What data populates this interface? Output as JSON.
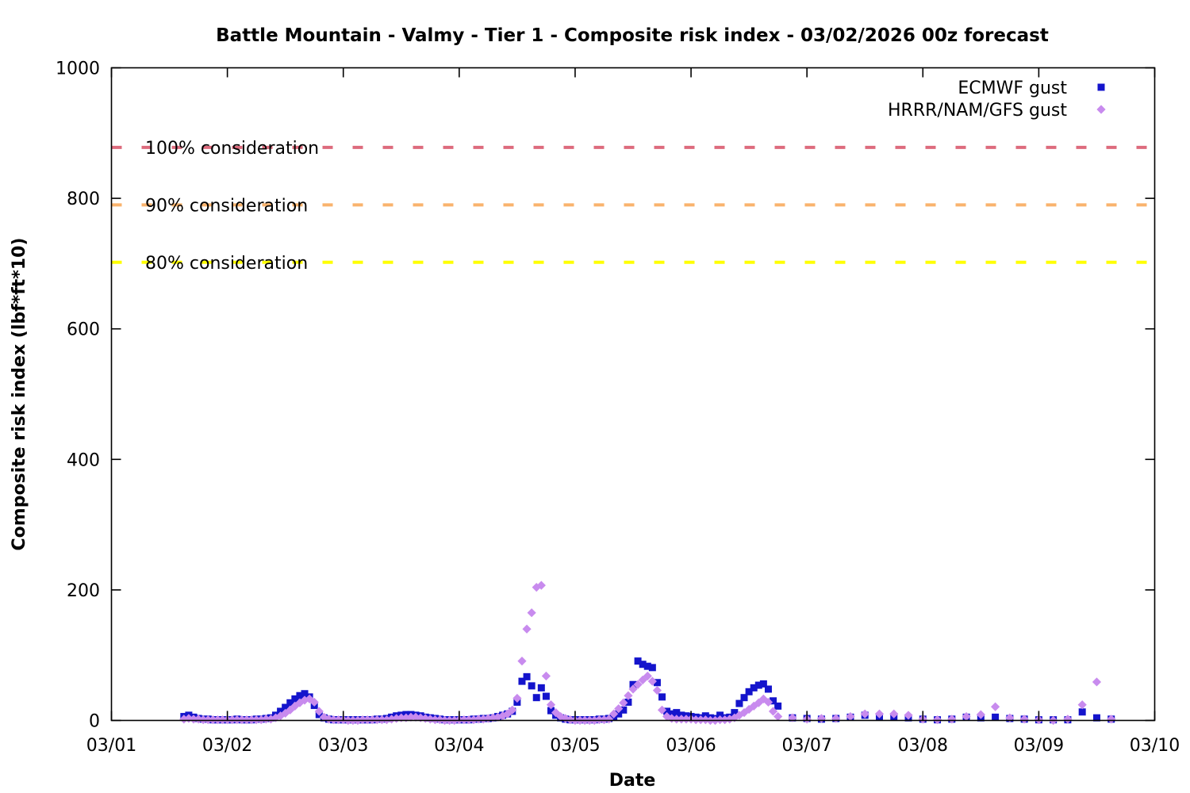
{
  "chart_data": {
    "type": "scatter",
    "title": "Battle Mountain - Valmy - Tier 1 - Composite risk index - 03/02/2026 00z forecast",
    "x": {
      "title": "Date",
      "tick_labels": [
        "03/01",
        "03/02",
        "03/03",
        "03/04",
        "03/05",
        "03/06",
        "03/07",
        "03/08",
        "03/09",
        "03/10"
      ],
      "range_days": [
        0,
        9
      ]
    },
    "y": {
      "title": "Composite risk index (lbf*ft*10)",
      "tick_values": [
        0,
        200,
        400,
        600,
        800,
        1000
      ],
      "tick_labels": [
        "0",
        "200",
        "400",
        "600",
        "800",
        "1000"
      ],
      "range": [
        0,
        1000
      ]
    },
    "grid": false,
    "legend_position": "top-right-inside",
    "thresholds": [
      {
        "label": "100% consideration",
        "value": 878,
        "color": "#dd6b7d"
      },
      {
        "label": "90% consideration",
        "value": 790,
        "color": "#f9b36d"
      },
      {
        "label": "80% consideration",
        "value": 702,
        "color": "#ffff00"
      }
    ],
    "series": [
      {
        "name": "ECMWF gust",
        "marker": "square",
        "color": "#1414cc",
        "segments": [
          {
            "start_day": 0.625,
            "step_hours": 1,
            "values": [
              6,
              8,
              5,
              3,
              2,
              2,
              1,
              1,
              1,
              1,
              1,
              2,
              1,
              1,
              1,
              2,
              2,
              3,
              4,
              8,
              14,
              20,
              27,
              33,
              38,
              41,
              36,
              23,
              9,
              4,
              2,
              1,
              1,
              1,
              1,
              1,
              1,
              1,
              1,
              1,
              2,
              2,
              3,
              5,
              7,
              8,
              9,
              9,
              8,
              7,
              5,
              4,
              3,
              2,
              1,
              1,
              1,
              1,
              1,
              1,
              2,
              2,
              3,
              3,
              4,
              6,
              8,
              10,
              14,
              28,
              60,
              67,
              53,
              35,
              50,
              37,
              15,
              8,
              4,
              2,
              1,
              1,
              1,
              1,
              1,
              1,
              2,
              2,
              3,
              6,
              10,
              16,
              28,
              55,
              91,
              86,
              83,
              81,
              58,
              36,
              14,
              10,
              12,
              8,
              7,
              6,
              5,
              4,
              7,
              4,
              3,
              8,
              4,
              5,
              12,
              26,
              35,
              44,
              50,
              54,
              56,
              48,
              30
            ]
          },
          {
            "start_day": 5.75,
            "step_hours": 3,
            "values": [
              22,
              4,
              3,
              2,
              3,
              5,
              8,
              6,
              6,
              4,
              2,
              1,
              2,
              5,
              4,
              5,
              3,
              2,
              1,
              1,
              1,
              13,
              4,
              2
            ]
          }
        ]
      },
      {
        "name": "HRRR/NAM/GFS gust",
        "marker": "diamond",
        "color": "#c88bee",
        "segments": [
          {
            "start_day": 0.625,
            "step_hours": 1,
            "values": [
              2,
              3,
              2,
              2,
              1,
              1,
              1,
              1,
              1,
              1,
              1,
              1,
              1,
              1,
              1,
              1,
              1,
              2,
              2,
              4,
              7,
              11,
              16,
              22,
              27,
              31,
              33,
              28,
              14,
              5,
              2,
              1,
              1,
              1,
              0,
              0,
              0,
              1,
              1,
              1,
              1,
              1,
              1,
              2,
              3,
              4,
              4,
              5,
              5,
              4,
              3,
              2,
              1,
              1,
              0,
              0,
              0,
              1,
              1,
              1,
              1,
              2,
              2,
              3,
              4,
              5,
              7,
              10,
              16,
              34,
              91,
              140,
              165,
              204,
              207,
              68,
              24,
              12,
              6,
              3,
              1,
              0,
              0,
              0,
              0,
              0,
              1,
              1,
              2,
              10,
              18,
              27,
              38,
              48,
              55,
              62,
              68,
              60,
              46,
              16,
              6,
              3,
              2,
              2,
              2,
              2,
              1,
              1,
              1,
              0,
              0,
              1,
              1,
              2,
              4,
              8,
              12,
              17,
              22,
              27,
              33,
              28,
              14
            ]
          },
          {
            "start_day": 5.75,
            "step_hours": 3,
            "values": [
              6,
              4,
              2,
              3,
              3,
              6,
              10,
              10,
              10,
              8,
              2,
              1,
              2,
              6,
              9,
              21,
              4,
              2,
              1,
              0,
              2,
              24,
              59,
              2
            ]
          }
        ]
      }
    ]
  }
}
